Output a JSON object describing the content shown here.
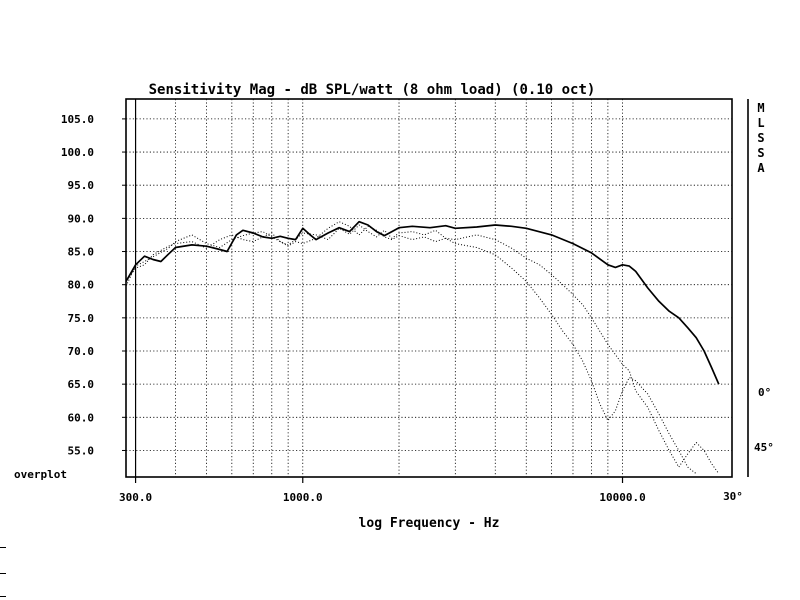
{
  "chart_data": {
    "type": "line",
    "title": "Sensitivity Mag - dB SPL/watt (8 ohm load) (0.10 oct)",
    "xlabel": "log Frequency - Hz",
    "ylabel": "",
    "x_scale": "log",
    "xlim": [
      280,
      22000
    ],
    "ylim": [
      51,
      108
    ],
    "x_tick_labels": [
      {
        "value": 300,
        "label": "300.0"
      },
      {
        "value": 1000,
        "label": "1000.0"
      },
      {
        "value": 10000,
        "label": "10000.0"
      }
    ],
    "x_gridlines": [
      300,
      400,
      500,
      600,
      700,
      800,
      900,
      1000,
      2000,
      3000,
      4000,
      5000,
      6000,
      7000,
      8000,
      9000,
      10000
    ],
    "y_ticks": [
      {
        "value": 105,
        "label": "105.0"
      },
      {
        "value": 100,
        "label": "100.0"
      },
      {
        "value": 95,
        "label": "95.0"
      },
      {
        "value": 90,
        "label": "90.0"
      },
      {
        "value": 85,
        "label": "85.0"
      },
      {
        "value": 80,
        "label": "80.0"
      },
      {
        "value": 75,
        "label": "75.0"
      },
      {
        "value": 70,
        "label": "70.0"
      },
      {
        "value": 65,
        "label": "65.0"
      },
      {
        "value": 60,
        "label": "60.0"
      },
      {
        "value": 55,
        "label": "55.0"
      }
    ],
    "grid": true,
    "bottom_left_label": "overplot",
    "side_label": [
      "M",
      "L",
      "S",
      "S",
      "A"
    ],
    "annotations": [
      {
        "text": "0°",
        "series": "0°"
      },
      {
        "text": "45°",
        "series": "45°"
      },
      {
        "text": "30°",
        "series": "30°"
      }
    ],
    "series": [
      {
        "name": "0°",
        "style": "solid",
        "points": [
          [
            280,
            80.5
          ],
          [
            300,
            83.0
          ],
          [
            320,
            84.3
          ],
          [
            340,
            83.8
          ],
          [
            360,
            83.5
          ],
          [
            380,
            84.6
          ],
          [
            400,
            85.6
          ],
          [
            450,
            86.0
          ],
          [
            500,
            85.8
          ],
          [
            550,
            85.3
          ],
          [
            580,
            85.0
          ],
          [
            620,
            87.5
          ],
          [
            650,
            88.2
          ],
          [
            700,
            87.8
          ],
          [
            750,
            87.2
          ],
          [
            800,
            87.0
          ],
          [
            850,
            87.3
          ],
          [
            900,
            87.0
          ],
          [
            950,
            86.8
          ],
          [
            1000,
            88.5
          ],
          [
            1050,
            87.6
          ],
          [
            1100,
            86.8
          ],
          [
            1200,
            87.8
          ],
          [
            1300,
            88.6
          ],
          [
            1400,
            88.0
          ],
          [
            1500,
            89.5
          ],
          [
            1600,
            89.0
          ],
          [
            1700,
            88.0
          ],
          [
            1800,
            87.4
          ],
          [
            1900,
            88.0
          ],
          [
            2000,
            88.6
          ],
          [
            2200,
            88.8
          ],
          [
            2500,
            88.6
          ],
          [
            2800,
            88.9
          ],
          [
            3000,
            88.5
          ],
          [
            3500,
            88.7
          ],
          [
            4000,
            89.0
          ],
          [
            4500,
            88.8
          ],
          [
            5000,
            88.5
          ],
          [
            6000,
            87.5
          ],
          [
            7000,
            86.2
          ],
          [
            8000,
            84.8
          ],
          [
            9000,
            83.0
          ],
          [
            9500,
            82.6
          ],
          [
            10000,
            83.0
          ],
          [
            10500,
            82.8
          ],
          [
            11000,
            82.0
          ],
          [
            12000,
            79.5
          ],
          [
            13000,
            77.5
          ],
          [
            14000,
            76.0
          ],
          [
            15000,
            75.0
          ],
          [
            16000,
            73.5
          ],
          [
            17000,
            72.0
          ],
          [
            18000,
            70.0
          ],
          [
            19000,
            67.5
          ],
          [
            20000,
            65.0
          ]
        ]
      },
      {
        "name": "30°",
        "style": "dotted",
        "points": [
          [
            280,
            79.8
          ],
          [
            300,
            82.8
          ],
          [
            320,
            83.5
          ],
          [
            340,
            84.2
          ],
          [
            380,
            85.5
          ],
          [
            400,
            86.5
          ],
          [
            450,
            87.5
          ],
          [
            500,
            86.2
          ],
          [
            550,
            85.6
          ],
          [
            600,
            86.8
          ],
          [
            650,
            87.4
          ],
          [
            700,
            87.8
          ],
          [
            750,
            88.0
          ],
          [
            800,
            87.2
          ],
          [
            850,
            86.5
          ],
          [
            900,
            86.0
          ],
          [
            950,
            86.8
          ],
          [
            1000,
            87.8
          ],
          [
            1100,
            87.5
          ],
          [
            1200,
            86.8
          ],
          [
            1300,
            88.5
          ],
          [
            1400,
            87.6
          ],
          [
            1500,
            89.0
          ],
          [
            1600,
            88.0
          ],
          [
            1700,
            87.2
          ],
          [
            1800,
            88.2
          ],
          [
            1900,
            87.0
          ],
          [
            2000,
            87.8
          ],
          [
            2200,
            88.0
          ],
          [
            2400,
            87.5
          ],
          [
            2600,
            88.2
          ],
          [
            2800,
            87.0
          ],
          [
            3000,
            86.8
          ],
          [
            3500,
            87.5
          ],
          [
            4000,
            86.8
          ],
          [
            4500,
            85.5
          ],
          [
            5000,
            84.0
          ],
          [
            5500,
            83.0
          ],
          [
            6000,
            81.5
          ],
          [
            6500,
            80.0
          ],
          [
            7000,
            78.5
          ],
          [
            7500,
            77.0
          ],
          [
            8000,
            75.0
          ],
          [
            9000,
            71.0
          ],
          [
            10000,
            68.0
          ],
          [
            10500,
            67.0
          ],
          [
            11000,
            64.0
          ],
          [
            12000,
            61.5
          ],
          [
            13000,
            58.0
          ],
          [
            14000,
            55.0
          ],
          [
            15000,
            52.5
          ],
          [
            16000,
            54.5
          ],
          [
            17000,
            56.2
          ],
          [
            18000,
            55.0
          ],
          [
            19000,
            53.0
          ],
          [
            20000,
            51.5
          ]
        ]
      },
      {
        "name": "45°",
        "style": "dotted",
        "points": [
          [
            280,
            80.5
          ],
          [
            300,
            82.5
          ],
          [
            320,
            83.0
          ],
          [
            340,
            84.5
          ],
          [
            380,
            85.8
          ],
          [
            400,
            86.2
          ],
          [
            450,
            86.5
          ],
          [
            500,
            85.5
          ],
          [
            550,
            86.8
          ],
          [
            600,
            87.5
          ],
          [
            650,
            86.8
          ],
          [
            700,
            86.5
          ],
          [
            750,
            87.2
          ],
          [
            800,
            87.8
          ],
          [
            850,
            86.5
          ],
          [
            900,
            85.8
          ],
          [
            950,
            86.5
          ],
          [
            1000,
            86.2
          ],
          [
            1100,
            87.0
          ],
          [
            1200,
            88.5
          ],
          [
            1300,
            89.5
          ],
          [
            1400,
            88.8
          ],
          [
            1500,
            87.5
          ],
          [
            1600,
            88.8
          ],
          [
            1700,
            88.2
          ],
          [
            1800,
            87.2
          ],
          [
            1900,
            86.8
          ],
          [
            2000,
            87.4
          ],
          [
            2200,
            86.8
          ],
          [
            2400,
            87.2
          ],
          [
            2600,
            86.5
          ],
          [
            2800,
            87.0
          ],
          [
            3000,
            86.2
          ],
          [
            3500,
            85.6
          ],
          [
            4000,
            84.5
          ],
          [
            4500,
            82.5
          ],
          [
            5000,
            80.5
          ],
          [
            5500,
            78.0
          ],
          [
            6000,
            75.5
          ],
          [
            6500,
            73.0
          ],
          [
            7000,
            71.0
          ],
          [
            7500,
            68.5
          ],
          [
            8000,
            65.5
          ],
          [
            8500,
            62.0
          ],
          [
            9000,
            59.5
          ],
          [
            9500,
            61.0
          ],
          [
            10000,
            64.0
          ],
          [
            10500,
            66.0
          ],
          [
            11000,
            65.5
          ],
          [
            12000,
            63.5
          ],
          [
            13000,
            60.5
          ],
          [
            14000,
            57.5
          ],
          [
            15000,
            55.0
          ],
          [
            16000,
            52.5
          ],
          [
            17000,
            51.5
          ]
        ]
      }
    ]
  }
}
